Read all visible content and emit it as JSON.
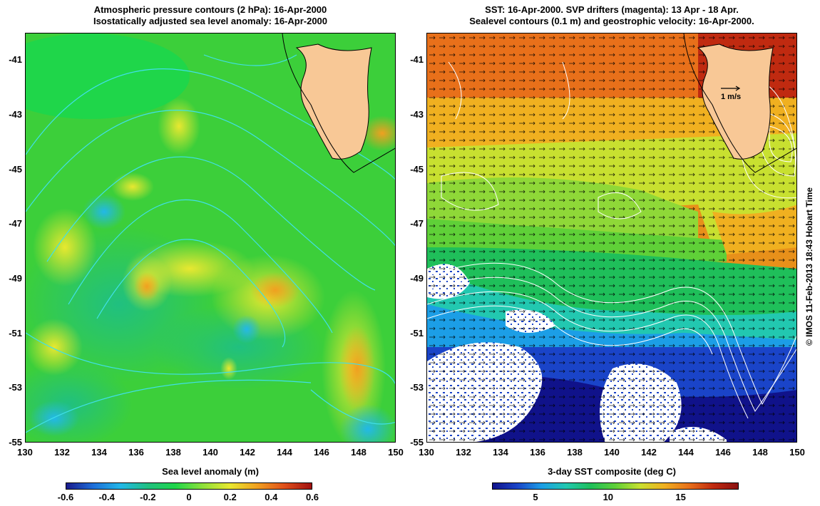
{
  "left_panel": {
    "title_line1": "Atmospheric pressure contours (2 hPa): 16-Apr-2000",
    "title_line2": "Isostatically adjusted sea level anomaly: 16-Apr-2000",
    "colorbar_label": "Sea level anomaly (m)",
    "colorbar_ticks": [
      "-0.6",
      "-0.4",
      "-0.2",
      "0",
      "0.2",
      "0.4",
      "0.6"
    ],
    "colorbar_range": [
      -0.6,
      0.6
    ],
    "colors": [
      "#1a1a8c",
      "#1e6fd9",
      "#22b8e8",
      "#20c080",
      "#1fd64a",
      "#8de03a",
      "#e8e830",
      "#f0a020",
      "#e0501a",
      "#a01010"
    ]
  },
  "right_panel": {
    "title_line1": "SST: 16-Apr-2000. SVP drifters (magenta): 13 Apr - 18 Apr.",
    "title_line2": "Sealevel contours (0.1 m) and geostrophic velocity: 16-Apr-2000.",
    "colorbar_label": "3-day SST composite (deg C)",
    "colorbar_ticks": [
      "5",
      "10",
      "15"
    ],
    "colorbar_range": [
      2,
      19
    ],
    "velocity_scale_label": "1 m/s",
    "colors": [
      "#10128a",
      "#1a44c8",
      "#1c9ee6",
      "#22c8b0",
      "#1fbf5a",
      "#5fd038",
      "#c8e030",
      "#f0b020",
      "#e8701a",
      "#c02a10",
      "#8a1010"
    ]
  },
  "axes": {
    "lon_ticks": [
      "130",
      "132",
      "134",
      "136",
      "138",
      "140",
      "142",
      "144",
      "146",
      "148",
      "150"
    ],
    "lat_ticks": [
      "-41",
      "-43",
      "-45",
      "-47",
      "-49",
      "-51",
      "-53",
      "-55"
    ],
    "lon_range": [
      130,
      150
    ],
    "lat_range": [
      -55,
      -40
    ]
  },
  "map_features": {
    "land": "Tasmania",
    "land_color": "#f8c896",
    "pressure_contour_color": "#40e0e8",
    "sealevel_contour_color": "#ffffff"
  },
  "credit": "© IMOS 11-Feb-2013 18:43 Hobart Time"
}
